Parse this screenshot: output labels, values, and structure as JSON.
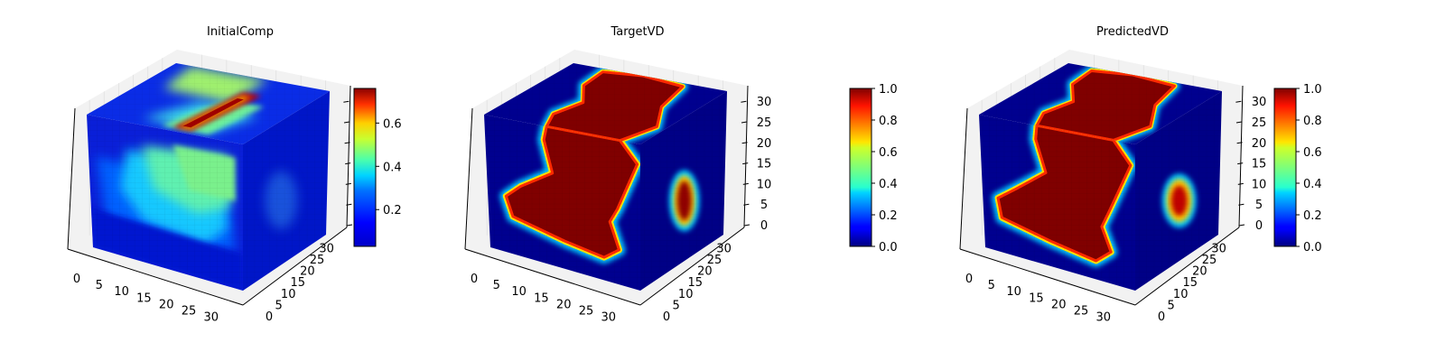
{
  "chart_data": [
    {
      "type": "heatmap",
      "subtype": "3d-voxel",
      "title": "InitialComp",
      "x_ticks": [
        "0",
        "5",
        "10",
        "15",
        "20",
        "25",
        "30"
      ],
      "y_ticks": [
        "0",
        "5",
        "10",
        "15",
        "20",
        "25",
        "30"
      ],
      "z_ticks": [],
      "xlim": [
        0,
        32
      ],
      "ylim": [
        0,
        32
      ],
      "zlim": [
        0,
        32
      ],
      "colormap": "jet",
      "colorbar": {
        "ticks": [
          "0.2",
          "0.4",
          "0.6"
        ],
        "tick_values": [
          0.2,
          0.4,
          0.6
        ],
        "range": [
          0.03,
          0.76
        ]
      },
      "pattern": "initial"
    },
    {
      "type": "heatmap",
      "subtype": "3d-voxel",
      "title": "TargetVD",
      "x_ticks": [
        "0",
        "5",
        "10",
        "15",
        "20",
        "25",
        "30"
      ],
      "y_ticks": [
        "0",
        "5",
        "10",
        "15",
        "20",
        "25",
        "30"
      ],
      "z_ticks": [
        "0",
        "5",
        "10",
        "15",
        "20",
        "25",
        "30"
      ],
      "xlim": [
        0,
        32
      ],
      "ylim": [
        0,
        32
      ],
      "zlim": [
        0,
        32
      ],
      "colormap": "jet",
      "colorbar": {
        "ticks": [
          "0.0",
          "0.2",
          "0.4",
          "0.6",
          "0.8",
          "1.0"
        ],
        "tick_values": [
          0,
          0.2,
          0.4,
          0.6,
          0.8,
          1.0
        ],
        "range": [
          0,
          1
        ]
      },
      "pattern": "target"
    },
    {
      "type": "heatmap",
      "subtype": "3d-voxel",
      "title": "PredictedVD",
      "x_ticks": [
        "0",
        "5",
        "10",
        "15",
        "20",
        "25",
        "30"
      ],
      "y_ticks": [
        "0",
        "5",
        "10",
        "15",
        "20",
        "25",
        "30"
      ],
      "z_ticks": [
        "0",
        "5",
        "10",
        "15",
        "20",
        "25",
        "30"
      ],
      "xlim": [
        0,
        32
      ],
      "ylim": [
        0,
        32
      ],
      "zlim": [
        0,
        32
      ],
      "colormap": "jet",
      "colorbar": {
        "ticks": [
          "0.0",
          "0.2",
          "0.4",
          "0.6",
          "0.8",
          "1.0"
        ],
        "tick_values": [
          0,
          0.2,
          0.4,
          0.6,
          0.8,
          1.0
        ],
        "range": [
          0,
          1
        ]
      },
      "pattern": "predicted"
    }
  ]
}
